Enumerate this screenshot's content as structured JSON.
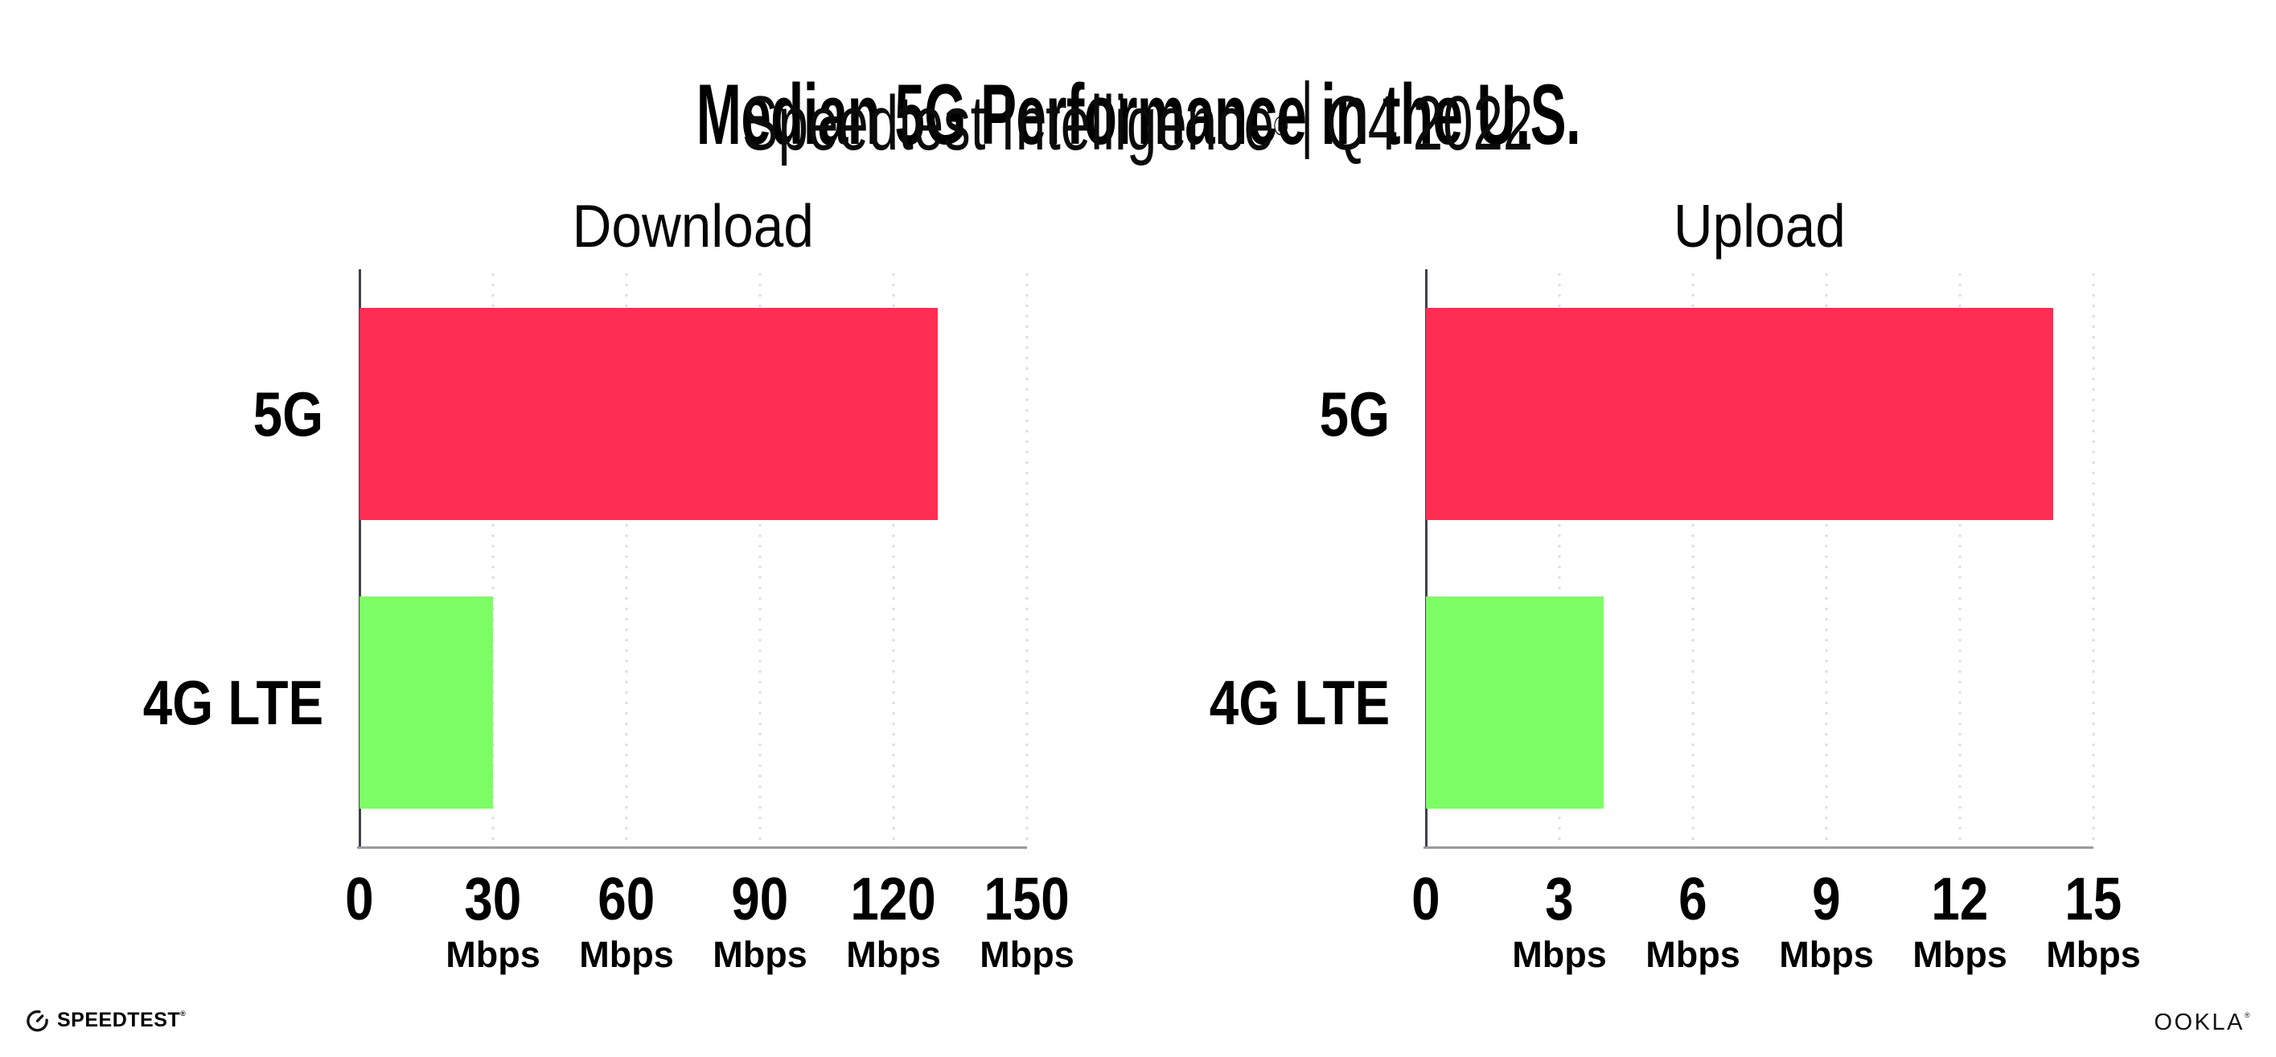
{
  "header": {
    "title": "Median 5G Performance in the U.S.",
    "subtitle": {
      "brand": "Speedtest Intelligence",
      "registered_mark": "®",
      "separator": "|",
      "period": "Q4 2022"
    }
  },
  "chart_data": [
    {
      "type": "bar",
      "orientation": "horizontal",
      "title": "Download",
      "categories": [
        "5G",
        "4G LTE"
      ],
      "values": [
        130,
        30
      ],
      "unit": "Mbps",
      "xlim": [
        0,
        150
      ],
      "xticks": [
        0,
        30,
        60,
        90,
        120,
        150
      ],
      "grid": "vertical-dotted",
      "legend": "none",
      "bar_colors": [
        "#fd2d54",
        "#7dfd66"
      ]
    },
    {
      "type": "bar",
      "orientation": "horizontal",
      "title": "Upload",
      "categories": [
        "5G",
        "4G LTE"
      ],
      "values": [
        14.1,
        4
      ],
      "unit": "Mbps",
      "xlim": [
        0,
        15
      ],
      "xticks": [
        0,
        3,
        6,
        9,
        12,
        15
      ],
      "grid": "vertical-dotted",
      "legend": "none",
      "bar_colors": [
        "#fd2d54",
        "#7dfd66"
      ]
    }
  ],
  "footer": {
    "speedtest_wordmark": "SPEEDTEST",
    "speedtest_mark": "®",
    "ookla_wordmark": "OOKLA",
    "ookla_mark": "®"
  },
  "colors": {
    "bar_5g": "#fd2d54",
    "bar_4g_lte": "#7dfd66",
    "axis_line": "#41414b",
    "baseline": "#9a9aa0",
    "gridline": "#dcdde6",
    "text": "#000000",
    "background": "#ffffff"
  }
}
